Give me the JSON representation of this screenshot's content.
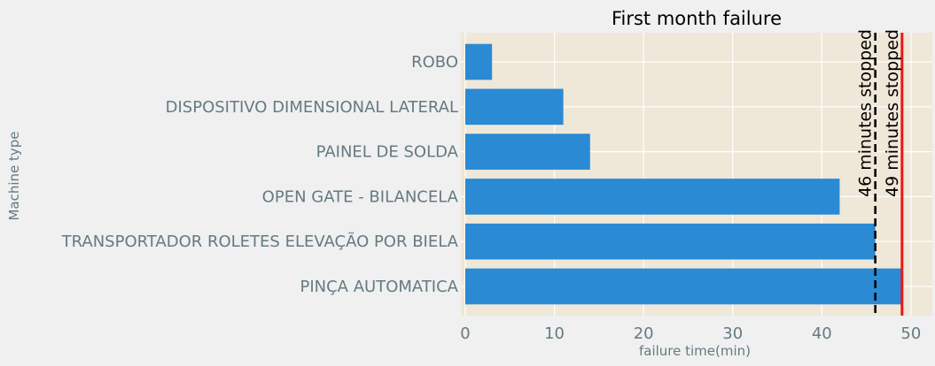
{
  "chart_data": {
    "type": "bar",
    "orientation": "horizontal",
    "title": "First month failure",
    "xlabel": "failure time(min)",
    "ylabel": "Machine type",
    "categories": [
      "ROBO",
      "DISPOSITIVO DIMENSIONAL LATERAL",
      "PAINEL DE SOLDA",
      "OPEN GATE - BILANCELA",
      "TRANSPORTADOR ROLETES ELEVAÇÃO POR BIELA",
      "PINÇA AUTOMATICA"
    ],
    "values": [
      3,
      11,
      14,
      42,
      46,
      49
    ],
    "xlim": [
      0,
      52
    ],
    "xticks": [
      0,
      10,
      20,
      30,
      40,
      50
    ],
    "grid": true,
    "reference_lines": [
      {
        "x": 46,
        "style": "dashed",
        "color": "#000000",
        "label": "46 minutes stopped"
      },
      {
        "x": 49,
        "style": "solid",
        "color": "#e8161b",
        "label": "49 minutes stopped"
      }
    ],
    "colors": {
      "bar": "#2a8ad4",
      "plot_bg": "#efe7d7",
      "figure_bg": "#f0f0f0",
      "tick_label": "#657a82",
      "grid": "#ffffff"
    }
  }
}
